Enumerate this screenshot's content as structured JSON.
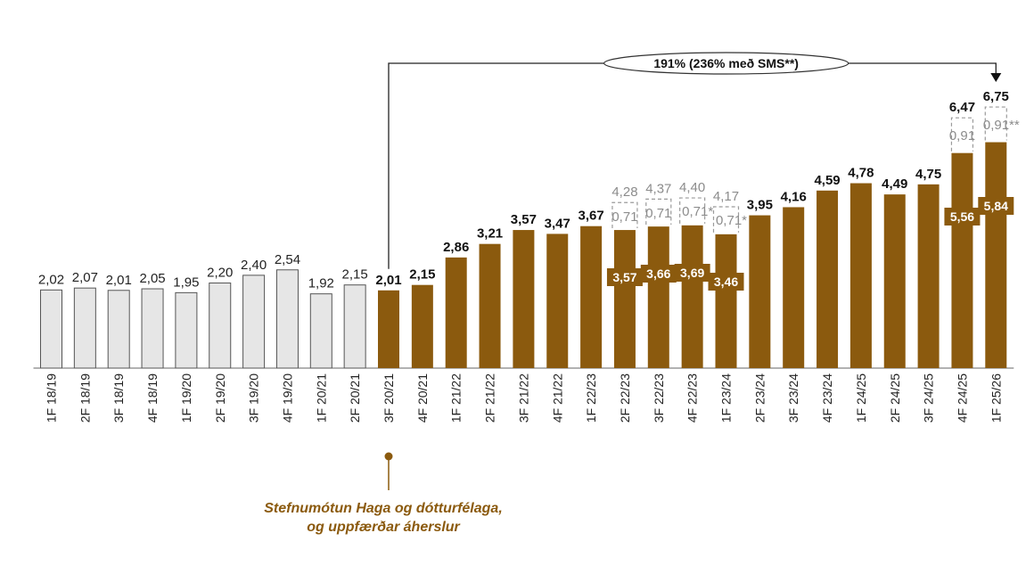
{
  "chart_data": {
    "type": "bar",
    "categories": [
      "1F 18/19",
      "2F 18/19",
      "3F 18/19",
      "4F 18/19",
      "1F 19/20",
      "2F 19/20",
      "3F 19/20",
      "4F 19/20",
      "1F 20/21",
      "2F 20/21",
      "3F 20/21",
      "4F 20/21",
      "1F 21/22",
      "2F 21/22",
      "3F 21/22",
      "4F 21/22",
      "1F 22/23",
      "2F 22/23",
      "3F 22/23",
      "4F 22/23",
      "1F 23/24",
      "2F 23/24",
      "3F 23/24",
      "4F 23/24",
      "1F 24/25",
      "2F 24/25",
      "3F 24/25",
      "4F 24/25",
      "1F 25/26"
    ],
    "values": [
      2.02,
      2.07,
      2.01,
      2.05,
      1.95,
      2.2,
      2.4,
      2.54,
      1.92,
      2.15,
      2.01,
      2.15,
      2.86,
      3.21,
      3.57,
      3.47,
      3.67,
      3.57,
      3.66,
      3.69,
      3.46,
      3.95,
      4.16,
      4.59,
      4.78,
      4.49,
      4.75,
      5.56,
      5.84
    ],
    "value_labels": [
      "2,02",
      "2,07",
      "2,01",
      "2,05",
      "1,95",
      "2,20",
      "2,40",
      "2,54",
      "1,92",
      "2,15",
      "2,01",
      "2,15",
      "2,86",
      "3,21",
      "3,57",
      "3,47",
      "3,67",
      "3,57",
      "3,66",
      "3,69",
      "3,46",
      "3,95",
      "4,16",
      "4,59",
      "4,78",
      "4,49",
      "4,75",
      "5,56",
      "5,84"
    ],
    "bar_colors": [
      "#e6e6e6",
      "#e6e6e6",
      "#e6e6e6",
      "#e6e6e6",
      "#e6e6e6",
      "#e6e6e6",
      "#e6e6e6",
      "#e6e6e6",
      "#e6e6e6",
      "#e6e6e6",
      "#8b5a0e",
      "#8b5a0e",
      "#8b5a0e",
      "#8b5a0e",
      "#8b5a0e",
      "#8b5a0e",
      "#8b5a0e",
      "#8b5a0e",
      "#8b5a0e",
      "#8b5a0e",
      "#8b5a0e",
      "#8b5a0e",
      "#8b5a0e",
      "#8b5a0e",
      "#8b5a0e",
      "#8b5a0e",
      "#8b5a0e",
      "#8b5a0e",
      "#8b5a0e"
    ],
    "label_styles": [
      "plain",
      "plain",
      "plain",
      "plain",
      "plain",
      "plain",
      "plain",
      "plain",
      "plain",
      "plain",
      "bold",
      "bold",
      "bold",
      "bold",
      "bold",
      "bold",
      "bold",
      "inner",
      "inner",
      "inner",
      "inner",
      "bold",
      "bold",
      "bold",
      "bold",
      "bold",
      "bold",
      "inner",
      "inner"
    ],
    "addons": [
      {
        "index": 17,
        "value": 0.71,
        "label": "0,71",
        "total": 4.28,
        "total_label": "4,28",
        "total_style": "light"
      },
      {
        "index": 18,
        "value": 0.71,
        "label": "0,71",
        "total": 4.37,
        "total_label": "4,37",
        "total_style": "light"
      },
      {
        "index": 19,
        "value": 0.71,
        "label": "0,71*",
        "total": 4.4,
        "total_label": "4,40",
        "total_style": "light"
      },
      {
        "index": 20,
        "value": 0.71,
        "label": "0,71*",
        "total": 4.17,
        "total_label": "4,17",
        "total_style": "light"
      },
      {
        "index": 27,
        "value": 0.91,
        "label": "0,91",
        "total": 6.47,
        "total_label": "6,47",
        "total_style": "bold"
      },
      {
        "index": 28,
        "value": 0.91,
        "label": "0,91**",
        "total": 6.75,
        "total_label": "6,75",
        "total_style": "bold"
      }
    ],
    "growth_annotation": {
      "text": "191% (236% með SMS**)",
      "from_index": 10,
      "to_index": 28
    },
    "ylim": [
      0,
      8.2
    ],
    "grid": false,
    "title": "",
    "xlabel": "",
    "ylabel": "",
    "colors": {
      "gray_bar": "#e6e6e6",
      "brown_bar": "#8b5a0e",
      "addon_outline": "#9a9a9a"
    },
    "marker": {
      "index": 10,
      "note": [
        "Stefnumótun Haga og dótturfélaga,",
        "og uppfærðar áherslur"
      ]
    }
  }
}
